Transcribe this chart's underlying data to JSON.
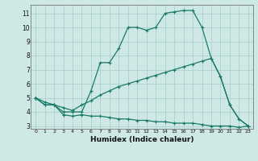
{
  "line1_x": [
    0,
    1,
    2,
    3,
    4,
    5,
    6,
    7,
    8,
    9,
    10,
    11,
    12,
    13,
    14,
    15,
    16,
    17,
    18,
    19,
    20,
    21,
    22,
    23
  ],
  "line1_y": [
    5.0,
    4.5,
    4.5,
    4.0,
    4.0,
    4.0,
    5.5,
    7.5,
    7.5,
    8.5,
    10.0,
    10.0,
    9.8,
    10.0,
    11.0,
    11.1,
    11.2,
    11.2,
    10.0,
    7.8,
    6.5,
    4.5,
    3.5,
    3.0
  ],
  "line2_x": [
    0,
    1,
    2,
    3,
    4,
    5,
    6,
    7,
    8,
    9,
    10,
    11,
    12,
    13,
    14,
    15,
    16,
    17,
    18,
    19,
    20,
    21,
    22,
    23
  ],
  "line2_y": [
    5.0,
    4.7,
    4.5,
    4.3,
    4.1,
    4.5,
    4.8,
    5.2,
    5.5,
    5.8,
    6.0,
    6.2,
    6.4,
    6.6,
    6.8,
    7.0,
    7.2,
    7.4,
    7.6,
    7.8,
    6.5,
    4.5,
    3.5,
    3.0
  ],
  "line3_x": [
    0,
    1,
    2,
    3,
    4,
    5,
    6,
    7,
    8,
    9,
    10,
    11,
    12,
    13,
    14,
    15,
    16,
    17,
    18,
    19,
    20,
    21,
    22,
    23
  ],
  "line3_y": [
    5.0,
    4.5,
    4.5,
    3.8,
    3.7,
    3.8,
    3.7,
    3.7,
    3.6,
    3.5,
    3.5,
    3.4,
    3.4,
    3.3,
    3.3,
    3.2,
    3.2,
    3.2,
    3.1,
    3.0,
    3.0,
    3.0,
    2.9,
    3.0
  ],
  "line_color": "#1a7a6a",
  "bg_color": "#cde8e5",
  "grid_color": "#aaccca",
  "xlabel": "Humidex (Indice chaleur)",
  "xlim": [
    -0.5,
    23.5
  ],
  "ylim": [
    2.8,
    11.6
  ],
  "yticks": [
    3,
    4,
    5,
    6,
    7,
    8,
    9,
    10,
    11
  ],
  "xticks": [
    0,
    1,
    2,
    3,
    4,
    5,
    6,
    7,
    8,
    9,
    10,
    11,
    12,
    13,
    14,
    15,
    16,
    17,
    18,
    19,
    20,
    21,
    22,
    23
  ],
  "marker": "+",
  "markersize": 3.5,
  "linewidth": 0.9
}
